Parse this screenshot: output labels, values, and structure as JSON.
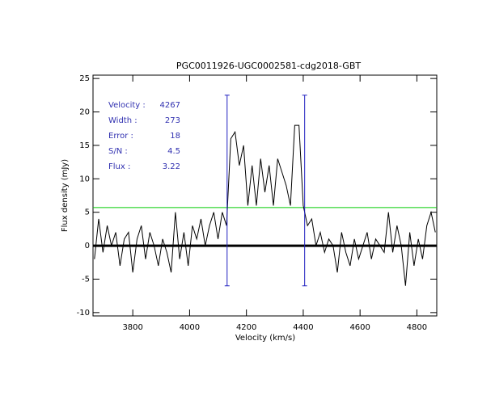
{
  "chart_data": {
    "type": "line",
    "title": "PGC0011926-UGC0002581-cdg2018-GBT",
    "xlabel": "Velocity (km/s)",
    "ylabel": "Flux density (mJy)",
    "xlim": [
      3660,
      4870
    ],
    "ylim": [
      -10.5,
      25.5
    ],
    "xticks": [
      3800,
      4000,
      4200,
      4400,
      4600,
      4800
    ],
    "yticks": [
      -10,
      -5,
      0,
      5,
      10,
      15,
      20,
      25
    ],
    "x": [
      3665,
      3680,
      3695,
      3710,
      3725,
      3740,
      3755,
      3770,
      3785,
      3800,
      3815,
      3830,
      3845,
      3860,
      3875,
      3890,
      3905,
      3920,
      3935,
      3950,
      3965,
      3980,
      3995,
      4010,
      4025,
      4040,
      4055,
      4070,
      4085,
      4100,
      4115,
      4130,
      4145,
      4160,
      4175,
      4190,
      4205,
      4220,
      4235,
      4250,
      4265,
      4280,
      4295,
      4310,
      4325,
      4340,
      4355,
      4370,
      4385,
      4400,
      4415,
      4430,
      4445,
      4460,
      4475,
      4490,
      4505,
      4520,
      4535,
      4550,
      4565,
      4580,
      4595,
      4610,
      4625,
      4640,
      4655,
      4670,
      4685,
      4700,
      4715,
      4730,
      4745,
      4760,
      4775,
      4790,
      4805,
      4820,
      4835,
      4850,
      4865
    ],
    "series": [
      {
        "color": "#000000",
        "values": [
          -2,
          4,
          -1,
          3,
          0,
          2,
          -3,
          1,
          2,
          -4,
          1,
          3,
          -2,
          2,
          0,
          -3,
          1,
          -1,
          -4,
          5,
          -2,
          2,
          -3,
          3,
          1,
          4,
          0,
          3,
          5,
          1,
          5,
          3,
          16,
          17,
          12,
          15,
          6,
          12,
          6,
          13,
          8,
          12,
          6,
          13,
          11,
          9,
          6,
          18,
          18,
          6,
          3,
          4,
          0,
          2,
          -1,
          1,
          0,
          -4,
          2,
          -1,
          -3,
          1,
          -2,
          0,
          2,
          -2,
          1,
          0,
          -1,
          5,
          -1,
          3,
          0,
          -6,
          2,
          -3,
          1,
          -2,
          3,
          5,
          2
        ]
      }
    ],
    "baseline": {
      "value": 0,
      "color": "#000000"
    },
    "threshold": {
      "value": 5.7,
      "color": "#00cc00"
    },
    "markers": {
      "x": [
        4132,
        4405
      ],
      "ymin": -6,
      "ymax": 22.5,
      "color": "#2020c0"
    },
    "annotations": [
      {
        "label": "Velocity :",
        "value": "4267"
      },
      {
        "label": "Width :",
        "value": "273"
      },
      {
        "label": "Error :",
        "value": "18"
      },
      {
        "label": "S/N :",
        "value": "4.5"
      },
      {
        "label": "Flux :",
        "value": "3.22"
      }
    ],
    "annotation_color": "#3030b0"
  }
}
